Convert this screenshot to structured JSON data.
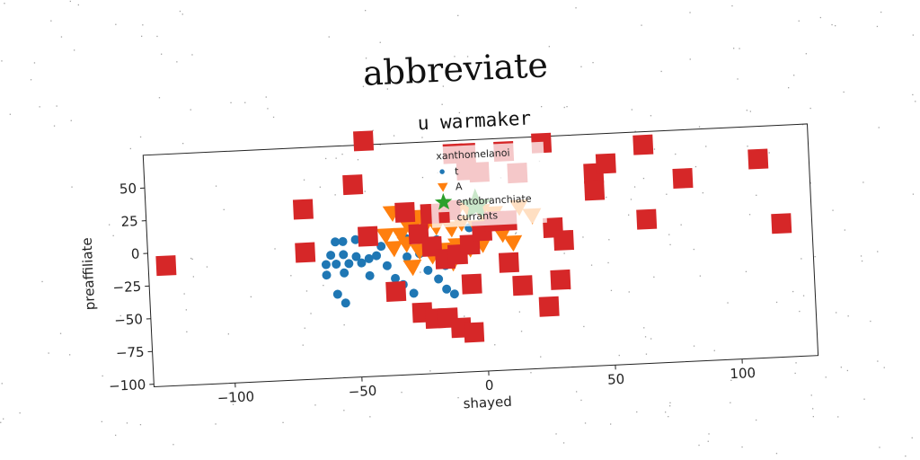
{
  "chart_data": {
    "type": "scatter",
    "suptitle": "abbreviate",
    "title": "u warmaker",
    "xlabel": "shayed",
    "ylabel": "preaffiliate",
    "xlim": [
      -132,
      130
    ],
    "ylim": [
      -102,
      75
    ],
    "xticks": [
      -100,
      -50,
      0,
      50,
      100
    ],
    "yticks": [
      50,
      25,
      0,
      -25,
      -50,
      -75,
      -100
    ],
    "grid": false,
    "legend": {
      "title": "xanthomelanoi",
      "placement": "upper-center"
    },
    "series": [
      {
        "name": "t",
        "marker": "circle",
        "color": "#1f77b4",
        "points": [
          [
            -58,
            2
          ],
          [
            -55,
            2
          ],
          [
            -50,
            3
          ],
          [
            -60,
            -8
          ],
          [
            -55,
            -8
          ],
          [
            -50,
            -10
          ],
          [
            -45,
            -12
          ],
          [
            -62,
            -15
          ],
          [
            -58,
            -15
          ],
          [
            -53,
            -15
          ],
          [
            -48,
            -15
          ],
          [
            -62,
            -23
          ],
          [
            -55,
            -22
          ],
          [
            -42,
            -10
          ],
          [
            -38,
            -18
          ],
          [
            -35,
            -28
          ],
          [
            -32,
            -33
          ],
          [
            -35,
            -38
          ],
          [
            -28,
            -40
          ],
          [
            -22,
            -23
          ],
          [
            -18,
            -30
          ],
          [
            -15,
            -38
          ],
          [
            -12,
            -42
          ],
          [
            -25,
            -10
          ],
          [
            -20,
            -5
          ],
          [
            -10,
            -15
          ],
          [
            -8,
            -8
          ],
          [
            -5,
            8
          ],
          [
            -30,
            2
          ],
          [
            -40,
            -3
          ],
          [
            -45,
            -25
          ],
          [
            -58,
            -38
          ],
          [
            -55,
            -45
          ],
          [
            -30,
            -12
          ],
          [
            -15,
            -20
          ],
          [
            -18,
            0
          ]
        ]
      },
      {
        "name": "A",
        "marker": "triangle-down",
        "color": "#ff7f0e",
        "points": [
          [
            -35,
            22
          ],
          [
            -30,
            15
          ],
          [
            -25,
            18
          ],
          [
            -20,
            22
          ],
          [
            -15,
            22
          ],
          [
            -10,
            20
          ],
          [
            -5,
            22
          ],
          [
            0,
            20
          ],
          [
            5,
            18
          ],
          [
            15,
            22
          ],
          [
            20,
            15
          ],
          [
            -38,
            5
          ],
          [
            -32,
            5
          ],
          [
            -28,
            10
          ],
          [
            -22,
            12
          ],
          [
            -18,
            10
          ],
          [
            -12,
            8
          ],
          [
            -8,
            12
          ],
          [
            -2,
            8
          ],
          [
            3,
            10
          ],
          [
            -35,
            -5
          ],
          [
            -30,
            -2
          ],
          [
            -25,
            -8
          ],
          [
            -20,
            -3
          ],
          [
            -15,
            -8
          ],
          [
            -10,
            -5
          ],
          [
            -5,
            -8
          ],
          [
            0,
            -5
          ],
          [
            8,
            2
          ],
          [
            10,
            10
          ],
          [
            -28,
            -20
          ],
          [
            -20,
            -12
          ],
          [
            -12,
            -18
          ],
          [
            12,
            -5
          ]
        ]
      },
      {
        "name": "entobranchiate",
        "marker": "star",
        "color": "#2ca02c",
        "points": [
          [
            -2,
            25
          ]
        ]
      },
      {
        "name": "currants",
        "marker": "square",
        "color": "#d62728",
        "points": [
          [
            -125,
            -10
          ],
          [
            -70,
            28
          ],
          [
            -70,
            -5
          ],
          [
            -50,
            45
          ],
          [
            -45,
            78
          ],
          [
            -45,
            5
          ],
          [
            -30,
            22
          ],
          [
            -25,
            5
          ],
          [
            -10,
            65
          ],
          [
            -5,
            65
          ],
          [
            10,
            65
          ],
          [
            -5,
            52
          ],
          [
            0,
            50
          ],
          [
            15,
            48
          ],
          [
            25,
            70
          ],
          [
            45,
            45
          ],
          [
            50,
            52
          ],
          [
            45,
            32
          ],
          [
            65,
            65
          ],
          [
            65,
            8
          ],
          [
            80,
            38
          ],
          [
            110,
            50
          ],
          [
            118,
            0
          ],
          [
            28,
            5
          ],
          [
            32,
            -5
          ],
          [
            -20,
            20
          ],
          [
            -12,
            22
          ],
          [
            -20,
            -5
          ],
          [
            -15,
            -15
          ],
          [
            -10,
            -12
          ],
          [
            -5,
            -5
          ],
          [
            0,
            5
          ],
          [
            5,
            12
          ],
          [
            10,
            12
          ],
          [
            -5,
            -35
          ],
          [
            10,
            -20
          ],
          [
            15,
            -38
          ],
          [
            -35,
            -38
          ],
          [
            -25,
            -55
          ],
          [
            -20,
            -60
          ],
          [
            -15,
            -60
          ],
          [
            -10,
            -68
          ],
          [
            -5,
            -72
          ],
          [
            25,
            -55
          ],
          [
            30,
            -35
          ]
        ]
      }
    ]
  }
}
